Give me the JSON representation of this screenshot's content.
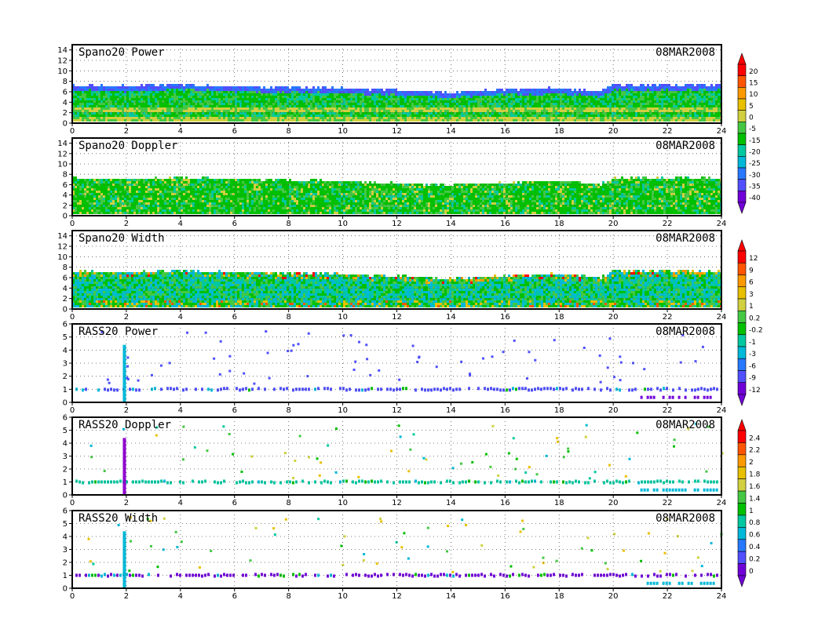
{
  "date_label": "08MAR2008",
  "x_axis": {
    "range": [
      0,
      24
    ],
    "ticks": [
      "0",
      "2",
      "4",
      "6",
      "8",
      "10",
      "12",
      "14",
      "16",
      "18",
      "20",
      "22",
      "24"
    ]
  },
  "colorbars": [
    {
      "name": "power-scale",
      "labels": [
        "20",
        "15",
        "10",
        "5",
        "0",
        "-5",
        "-15",
        "-20",
        "-25",
        "-30",
        "-35",
        "-40"
      ],
      "colors": [
        "#ff0000",
        "#ff5500",
        "#ff9900",
        "#e8c000",
        "#d0d040",
        "#44c844",
        "#00c000",
        "#00c8a0",
        "#00b8d8",
        "#2878ff",
        "#5050ff",
        "#7000d8"
      ]
    },
    {
      "name": "width-scale",
      "labels": [
        "12",
        "9",
        "6",
        "3",
        "1",
        "0.2",
        "-0.2",
        "-1",
        "-3",
        "-6",
        "-9",
        "-12"
      ],
      "colors": [
        "#ff0000",
        "#ff5500",
        "#ff9900",
        "#e8c000",
        "#d0d040",
        "#44c844",
        "#00c000",
        "#00c8a0",
        "#00b8d8",
        "#2878ff",
        "#5050ff",
        "#7000d8"
      ]
    },
    {
      "name": "doppler-scale",
      "labels": [
        "2.4",
        "2.2",
        "2",
        "1.8",
        "1.6",
        "1.4",
        "1",
        "0.8",
        "0.6",
        "0.4",
        "0.2",
        "0"
      ],
      "colors": [
        "#ff0000",
        "#ff5500",
        "#ff9900",
        "#e8c000",
        "#d0d040",
        "#44c844",
        "#00c000",
        "#00c8a0",
        "#00b8d8",
        "#2878ff",
        "#5050ff",
        "#7000d8"
      ]
    }
  ],
  "chart_data": [
    {
      "type": "heatmap",
      "title": "Spano20 Power",
      "date": "08MAR2008",
      "x_range": [
        0,
        24
      ],
      "y_range": [
        0,
        15
      ],
      "y_ticks": [
        "0",
        "2",
        "4",
        "6",
        "8",
        "10",
        "12",
        "14"
      ],
      "grid": true,
      "data_top_km": [
        [
          0,
          7.2
        ],
        [
          2,
          7.0
        ],
        [
          4,
          7.3
        ],
        [
          6,
          7.0
        ],
        [
          8,
          6.8
        ],
        [
          10,
          6.6
        ],
        [
          12,
          6.2
        ],
        [
          14,
          5.8
        ],
        [
          16,
          6.4
        ],
        [
          18,
          6.6
        ],
        [
          19.5,
          6.0
        ],
        [
          20,
          7.3
        ],
        [
          22,
          7.2
        ],
        [
          24,
          7.2
        ]
      ]
    },
    {
      "type": "heatmap",
      "title": "Spano20 Doppler",
      "date": "08MAR2008",
      "x_range": [
        0,
        24
      ],
      "y_range": [
        0,
        15
      ],
      "y_ticks": [
        "0",
        "2",
        "4",
        "6",
        "8",
        "10",
        "12",
        "14"
      ],
      "grid": true,
      "data_top_km": [
        [
          0,
          7.2
        ],
        [
          2,
          7.0
        ],
        [
          4,
          7.3
        ],
        [
          6,
          7.0
        ],
        [
          8,
          6.8
        ],
        [
          10,
          6.6
        ],
        [
          12,
          6.2
        ],
        [
          14,
          5.8
        ],
        [
          16,
          6.4
        ],
        [
          18,
          6.6
        ],
        [
          19.5,
          6.0
        ],
        [
          20,
          7.3
        ],
        [
          22,
          7.2
        ],
        [
          24,
          7.2
        ]
      ]
    },
    {
      "type": "heatmap",
      "title": "Spano20 Width",
      "date": "08MAR2008",
      "x_range": [
        0,
        24
      ],
      "y_range": [
        0,
        15
      ],
      "y_ticks": [
        "0",
        "2",
        "4",
        "6",
        "8",
        "10",
        "12",
        "14"
      ],
      "grid": true,
      "data_top_km": [
        [
          0,
          7.2
        ],
        [
          2,
          7.0
        ],
        [
          4,
          7.3
        ],
        [
          6,
          7.0
        ],
        [
          8,
          6.8
        ],
        [
          10,
          6.6
        ],
        [
          12,
          6.2
        ],
        [
          14,
          5.8
        ],
        [
          16,
          6.4
        ],
        [
          18,
          6.6
        ],
        [
          19.5,
          6.0
        ],
        [
          20,
          7.3
        ],
        [
          22,
          7.2
        ],
        [
          24,
          7.2
        ]
      ]
    },
    {
      "type": "scatter",
      "title": "RASS20 Power",
      "date": "08MAR2008",
      "x_range": [
        0,
        24
      ],
      "y_range": [
        0,
        6
      ],
      "y_ticks": [
        "0",
        "1",
        "2",
        "3",
        "4",
        "5",
        "6"
      ],
      "grid": true,
      "main_layer_km": 1.0,
      "spike_hour": 1.9,
      "spike_top_km": 4.4
    },
    {
      "type": "scatter",
      "title": "RASS20 Doppler",
      "date": "08MAR2008",
      "x_range": [
        0,
        24
      ],
      "y_range": [
        0,
        6
      ],
      "y_ticks": [
        "0",
        "1",
        "2",
        "3",
        "4",
        "5",
        "6"
      ],
      "grid": true,
      "main_layer_km": 1.0,
      "spike_hour": 1.9,
      "spike_top_km": 4.4
    },
    {
      "type": "scatter",
      "title": "RASS20 Width",
      "date": "08MAR2008",
      "x_range": [
        0,
        24
      ],
      "y_range": [
        0,
        6
      ],
      "y_ticks": [
        "0",
        "1",
        "2",
        "3",
        "4",
        "5",
        "6"
      ],
      "grid": true,
      "main_layer_km": 1.0,
      "spike_hour": 1.9,
      "spike_top_km": 4.4
    }
  ]
}
